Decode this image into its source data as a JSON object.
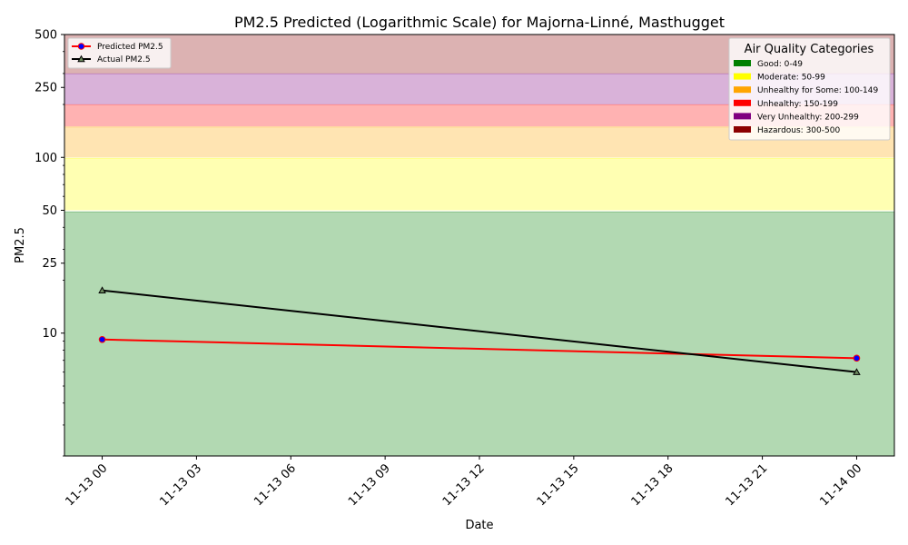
{
  "chart_data": {
    "type": "line",
    "title": "PM2.5 Predicted (Logarithmic Scale) for Majorna-Linné, Masthugget",
    "xlabel": "Date",
    "ylabel": "PM2.5",
    "y_scale": "log",
    "ylim": [
      2,
      500
    ],
    "xlim": [
      "2024-11-12 22:48",
      "2024-11-14 01:12"
    ],
    "x_ticks": [
      "2024-11-13 00:00",
      "2024-11-13 03:00",
      "2024-11-13 06:00",
      "2024-11-13 09:00",
      "2024-11-13 12:00",
      "2024-11-13 15:00",
      "2024-11-13 18:00",
      "2024-11-13 21:00",
      "2024-11-14 00:00"
    ],
    "x_tick_labels": [
      "11-13 00",
      "11-13 03",
      "11-13 06",
      "11-13 09",
      "11-13 12",
      "11-13 15",
      "11-13 18",
      "11-13 21",
      "11-14 00"
    ],
    "y_ticks": [
      10,
      25,
      50,
      100,
      250,
      500
    ],
    "y_tick_labels": [
      "10",
      "25",
      "50",
      "100",
      "250",
      "500"
    ],
    "grid": false,
    "series": [
      {
        "name": "Predicted PM2.5",
        "color": "#ff0000",
        "marker": "circle",
        "marker_face": "#0000ff",
        "points": [
          {
            "x": "2024-11-13 00:00",
            "y": 9.2
          },
          {
            "x": "2024-11-14 00:00",
            "y": 7.2
          }
        ]
      },
      {
        "name": "Actual PM2.5",
        "color": "#000000",
        "marker": "triangle",
        "marker_face": "#6d8a5f",
        "points": [
          {
            "x": "2024-11-13 00:00",
            "y": 17.5
          },
          {
            "x": "2024-11-14 00:00",
            "y": 6.0
          }
        ]
      }
    ],
    "bands": [
      {
        "label": "Good: 0-49",
        "from": 0,
        "to": 49,
        "color": "#008000"
      },
      {
        "label": "Moderate: 50-99",
        "from": 50,
        "to": 99,
        "color": "#ffff00"
      },
      {
        "label": "Unhealthy for Some: 100-149",
        "from": 100,
        "to": 149,
        "color": "#ffa500"
      },
      {
        "label": "Unhealthy: 150-199",
        "from": 150,
        "to": 199,
        "color": "#ff0000"
      },
      {
        "label": "Very Unhealthy: 200-299",
        "from": 200,
        "to": 299,
        "color": "#800080"
      },
      {
        "label": "Hazardous: 300-500",
        "from": 300,
        "to": 500,
        "color": "#8b0000"
      }
    ],
    "legend_series_placement": "top-left",
    "legend_categories_title": "Air Quality Categories",
    "legend_categories_placement": "top-right"
  }
}
